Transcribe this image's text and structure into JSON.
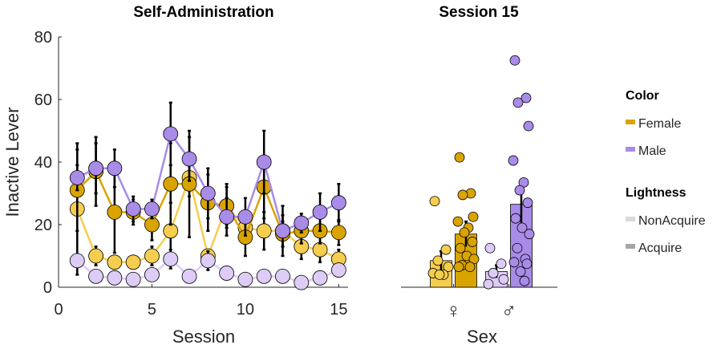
{
  "colors": {
    "female_dark": "#D9A400",
    "female_light": "#F5CD4F",
    "male_dark": "#A98BE8",
    "male_light": "#DDCCF6",
    "errorbar": "#000000",
    "legend_nonacquire": "#D9D9D9",
    "legend_acquire": "#A6A6A6"
  },
  "chart_data": [
    {
      "type": "line",
      "title": "Self-Administration",
      "xlabel": "Session",
      "ylabel": "Inactive Lever",
      "xlim": [
        0,
        15.5
      ],
      "ylim": [
        0,
        80
      ],
      "xticks": [
        0,
        5,
        10,
        15
      ],
      "yticks": [
        0,
        20,
        40,
        60,
        80
      ],
      "x": [
        1,
        2,
        3,
        4,
        5,
        6,
        7,
        8,
        9,
        10,
        11,
        12,
        13,
        14,
        15
      ],
      "series": [
        {
          "name": "Female NonAcquire",
          "values": [
            25,
            10,
            8,
            8,
            10,
            18,
            35,
            10,
            26,
            19,
            18,
            18,
            13,
            12,
            9
          ],
          "err": [
            21,
            3,
            2,
            2,
            3,
            9,
            6,
            2,
            6,
            5,
            6,
            5,
            4,
            4,
            3
          ],
          "color": "#F5CD4F"
        },
        {
          "name": "Female Acquire",
          "values": [
            31,
            37,
            24,
            24,
            20,
            33,
            33,
            27,
            26,
            16,
            32,
            17,
            18,
            18,
            17.5
          ],
          "err": [
            13,
            11,
            13,
            4,
            5,
            13,
            17,
            9,
            7,
            6,
            10,
            4,
            4,
            4,
            4
          ],
          "color": "#D9A400"
        },
        {
          "name": "Male NonAcquire",
          "values": [
            8.5,
            3.5,
            3,
            2.5,
            4,
            9,
            3.5,
            8.5,
            4.5,
            2.5,
            3.5,
            3.5,
            1.5,
            3,
            5.5
          ],
          "err": [
            2,
            1,
            1,
            1,
            1,
            3,
            1,
            3,
            1,
            1,
            1,
            1,
            1,
            1,
            2
          ],
          "color": "#DDCCF6"
        },
        {
          "name": "Male Acquire",
          "values": [
            35,
            38,
            38,
            25,
            25,
            49,
            41,
            30,
            22.5,
            22.5,
            40,
            18,
            20.5,
            24,
            27
          ],
          "err": [
            4,
            8,
            6,
            4,
            3,
            10,
            7,
            8,
            6,
            6,
            10,
            8,
            3,
            6,
            6
          ],
          "color": "#A98BE8"
        }
      ]
    },
    {
      "type": "bar",
      "title": "Session 15",
      "xlabel": "Sex",
      "ylabel": "",
      "ylim": [
        0,
        80
      ],
      "categories": [
        "♀",
        "♂"
      ],
      "bars": [
        {
          "group": "♀",
          "name": "NonAcquire",
          "value": 8.5,
          "err": 3,
          "color": "#F5CD4F",
          "points": [
            27.5,
            12,
            8.5,
            6.5,
            4.5,
            4,
            4
          ]
        },
        {
          "group": "♀",
          "name": "Acquire",
          "value": 17,
          "err": 4,
          "color": "#D9A400",
          "points": [
            41.5,
            30,
            29.5,
            22.5,
            21,
            19,
            17.5,
            14.5,
            12.5,
            10,
            9,
            7,
            6.5,
            6.5
          ]
        },
        {
          "group": "♂",
          "name": "NonAcquire",
          "value": 5,
          "err": 2,
          "color": "#DDCCF6",
          "points": [
            12.5,
            7.5,
            4.5,
            2.5,
            1
          ]
        },
        {
          "group": "♂",
          "name": "Acquire",
          "value": 26.5,
          "err": 6,
          "color": "#A98BE8",
          "points": [
            72.5,
            60.5,
            59,
            51.5,
            40.5,
            33.5,
            31,
            27,
            22,
            19,
            17,
            12.5,
            9,
            8,
            7.5,
            5,
            2
          ]
        }
      ]
    }
  ],
  "legend": {
    "color_title": "Color",
    "female": "Female",
    "male": "Male",
    "lightness_title": "Lightness",
    "nonacquire": "NonAcquire",
    "acquire": "Acquire"
  }
}
